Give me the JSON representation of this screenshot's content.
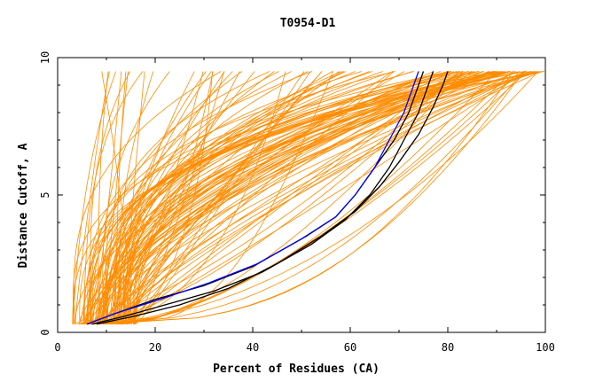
{
  "chart_data": {
    "type": "line",
    "title": "T0954-D1",
    "xlabel": "Percent of Residues (CA)",
    "ylabel": "Distance Cutoff, A",
    "xlim": [
      0,
      100
    ],
    "ylim": [
      0,
      10
    ],
    "x_ticks": [
      "0",
      "20",
      "40",
      "60",
      "80",
      "100"
    ],
    "y_ticks": [
      "0",
      "5",
      "10"
    ],
    "grid": false,
    "legend": "none",
    "colors": {
      "background_curves": "#ff8c00",
      "highlight_black": "#000000",
      "highlight_blue": "#0000ff"
    },
    "background_family": {
      "count": 130,
      "y_range": [
        0.3,
        9.5
      ],
      "x_at_low_cutoff_range": [
        3,
        16
      ],
      "x_at_high_cutoff_range": [
        8,
        100
      ]
    },
    "series": [
      {
        "color": "#000000",
        "points": [
          [
            6,
            0.3
          ],
          [
            12,
            0.7
          ],
          [
            20,
            1.2
          ],
          [
            30,
            1.7
          ],
          [
            40,
            2.4
          ],
          [
            50,
            3.4
          ],
          [
            57,
            4.2
          ],
          [
            61,
            5.0
          ],
          [
            65,
            6.0
          ],
          [
            69,
            7.0
          ],
          [
            72,
            8.0
          ],
          [
            74,
            9.0
          ],
          [
            75,
            9.5
          ]
        ]
      },
      {
        "color": "#000000",
        "points": [
          [
            7,
            0.3
          ],
          [
            14,
            0.6
          ],
          [
            22,
            1.0
          ],
          [
            32,
            1.5
          ],
          [
            42,
            2.2
          ],
          [
            52,
            3.2
          ],
          [
            59,
            4.1
          ],
          [
            64,
            5.0
          ],
          [
            68,
            6.0
          ],
          [
            71,
            7.0
          ],
          [
            74,
            8.0
          ],
          [
            76,
            9.0
          ],
          [
            77,
            9.5
          ]
        ]
      },
      {
        "color": "#000000",
        "points": [
          [
            8,
            0.3
          ],
          [
            16,
            0.6
          ],
          [
            25,
            1.0
          ],
          [
            35,
            1.6
          ],
          [
            45,
            2.5
          ],
          [
            54,
            3.5
          ],
          [
            61,
            4.4
          ],
          [
            66,
            5.3
          ],
          [
            70,
            6.2
          ],
          [
            74,
            7.2
          ],
          [
            77,
            8.2
          ],
          [
            79,
            9.0
          ],
          [
            80,
            9.5
          ]
        ]
      },
      {
        "color": "#0000ff",
        "points": [
          [
            6,
            0.3
          ],
          [
            12,
            0.7
          ],
          [
            21,
            1.2
          ],
          [
            31,
            1.8
          ],
          [
            41,
            2.5
          ],
          [
            51,
            3.5
          ],
          [
            57,
            4.2
          ],
          [
            61,
            5.0
          ],
          [
            65,
            6.0
          ],
          [
            68,
            7.0
          ],
          [
            71,
            8.0
          ],
          [
            73,
            9.0
          ],
          [
            74,
            9.5
          ]
        ]
      }
    ]
  }
}
